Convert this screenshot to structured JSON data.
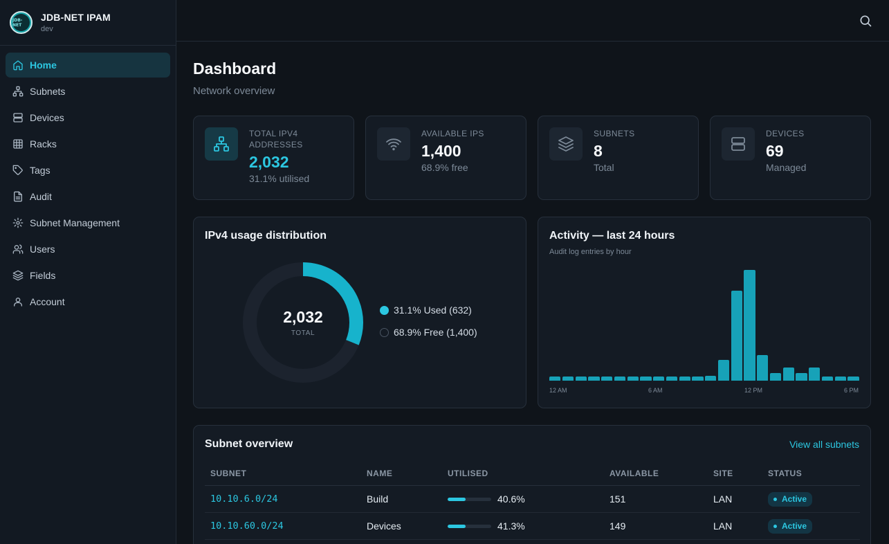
{
  "brand": {
    "title": "JDB-NET IPAM",
    "subtitle": "dev",
    "logo_text": "JDB-NET"
  },
  "sidebar": {
    "items": [
      {
        "label": "Home",
        "icon": "home-icon",
        "active": true
      },
      {
        "label": "Subnets",
        "icon": "network-icon"
      },
      {
        "label": "Devices",
        "icon": "server-icon"
      },
      {
        "label": "Racks",
        "icon": "grid-icon"
      },
      {
        "label": "Tags",
        "icon": "tag-icon"
      },
      {
        "label": "Audit",
        "icon": "file-icon"
      },
      {
        "label": "Subnet Management",
        "icon": "gear-icon"
      },
      {
        "label": "Users",
        "icon": "users-icon"
      },
      {
        "label": "Fields",
        "icon": "layers-icon"
      },
      {
        "label": "Account",
        "icon": "user-icon"
      }
    ]
  },
  "header": {
    "title": "Dashboard",
    "subtitle": "Network overview"
  },
  "stats": [
    {
      "label": "TOTAL IPV4 ADDRESSES",
      "value": "2,032",
      "note": "31.1% utilised",
      "icon": "network-icon"
    },
    {
      "label": "AVAILABLE IPS",
      "value": "1,400",
      "note": "68.9% free",
      "icon": "wifi-icon"
    },
    {
      "label": "SUBNETS",
      "value": "8",
      "note": "Total",
      "icon": "layers-icon"
    },
    {
      "label": "DEVICES",
      "value": "69",
      "note": "Managed",
      "icon": "server-icon"
    }
  ],
  "usage": {
    "title": "IPv4 usage distribution",
    "total": "2,032",
    "total_label": "TOTAL",
    "used_fraction": 0.311,
    "legend": [
      "31.1% Used (632)",
      "68.9% Free (1,400)"
    ]
  },
  "activity": {
    "title": "Activity — last 24 hours",
    "subtitle": "Audit log entries by hour",
    "ticks": [
      "12 AM",
      "6 AM",
      "12 PM",
      "6 PM"
    ]
  },
  "chart_data": {
    "type": "bar",
    "categories": [
      "0",
      "1",
      "2",
      "3",
      "4",
      "5",
      "6",
      "7",
      "8",
      "9",
      "10",
      "11",
      "12",
      "13",
      "14",
      "15",
      "16",
      "17",
      "18",
      "19",
      "20",
      "21",
      "22",
      "23"
    ],
    "values": [
      1,
      1,
      1,
      1,
      1,
      1,
      1,
      1,
      1,
      1,
      1,
      1,
      2,
      8,
      35,
      43,
      10,
      3,
      5,
      3,
      5,
      1,
      1,
      1
    ],
    "ylim": [
      0,
      43
    ],
    "xticks": [
      "12 AM",
      "6 AM",
      "12 PM",
      "6 PM"
    ]
  },
  "subnets": {
    "title": "Subnet overview",
    "view_all": "View all subnets",
    "columns": [
      "SUBNET",
      "NAME",
      "UTILISED",
      "AVAILABLE",
      "SITE",
      "STATUS"
    ],
    "rows": [
      {
        "subnet": "10.10.6.0/24",
        "name": "Build",
        "utilised": "40.6%",
        "utilised_fraction": 0.406,
        "available": "151",
        "site": "LAN",
        "status": "Active"
      },
      {
        "subnet": "10.10.60.0/24",
        "name": "Devices",
        "utilised": "41.3%",
        "utilised_fraction": 0.413,
        "available": "149",
        "site": "LAN",
        "status": "Active"
      }
    ]
  },
  "colors": {
    "accent": "#2cc7e1",
    "bar": "#17a2b8",
    "background": "#0f141a"
  }
}
